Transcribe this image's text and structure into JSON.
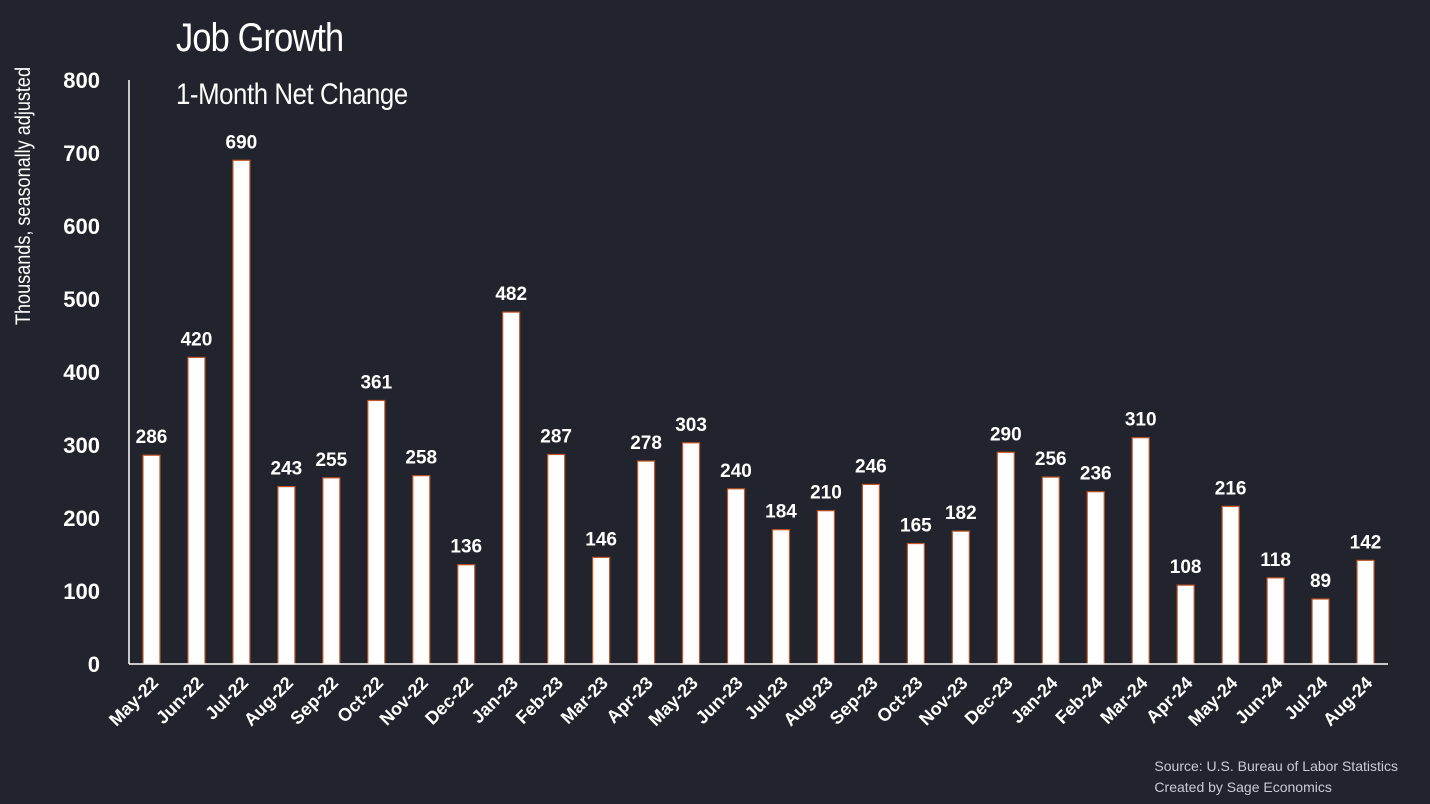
{
  "chart_data": {
    "type": "bar",
    "title": "Job Growth",
    "subtitle": "1-Month Net Change",
    "ylabel": "Thousands, seasonally adjusted",
    "xlabel": "",
    "ylim": [
      0,
      800
    ],
    "yticks": [
      0,
      100,
      200,
      300,
      400,
      500,
      600,
      700,
      800
    ],
    "grid": false,
    "data_labels": true,
    "categories": [
      "May-22",
      "Jun-22",
      "Jul-22",
      "Aug-22",
      "Sep-22",
      "Oct-22",
      "Nov-22",
      "Dec-22",
      "Jan-23",
      "Feb-23",
      "Mar-23",
      "Apr-23",
      "May-23",
      "Jun-23",
      "Jul-23",
      "Aug-23",
      "Sep-23",
      "Oct-23",
      "Nov-23",
      "Dec-23",
      "Jan-24",
      "Feb-24",
      "Mar-24",
      "Apr-24",
      "May-24",
      "Jun-24",
      "Jul-24",
      "Aug-24"
    ],
    "values": [
      286,
      420,
      690,
      243,
      255,
      361,
      258,
      136,
      482,
      287,
      146,
      278,
      303,
      240,
      184,
      210,
      246,
      165,
      182,
      290,
      256,
      236,
      310,
      108,
      216,
      118,
      89,
      142
    ],
    "colors": {
      "background": "#21242c",
      "bar_fill": "#ffffff",
      "bar_outline": "#c0562a",
      "text": "#ffffff",
      "axis": "#ffffff"
    }
  },
  "footer": {
    "source": "Source: U.S. Bureau of Labor Statistics",
    "credit": "Created by Sage Economics"
  }
}
